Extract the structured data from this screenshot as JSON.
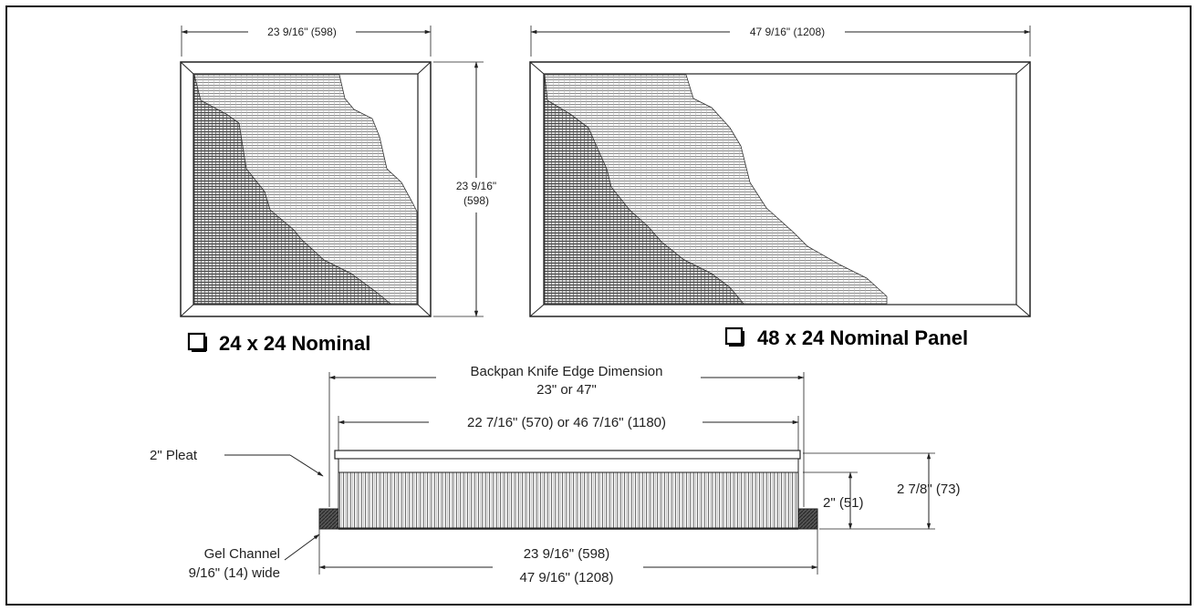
{
  "panel_24": {
    "width_label": "23 9/16\" (598)",
    "height_label_line1": "23 9/16\"",
    "height_label_line2": "(598)",
    "title": "24 x 24 Nominal"
  },
  "panel_48": {
    "width_label": "47 9/16\" (1208)",
    "title": "48 x 24 Nominal Panel"
  },
  "section": {
    "knife_edge_line1": "Backpan Knife Edge Dimension",
    "knife_edge_line2": "23\" or 47\"",
    "inner_width": "22 7/16\" (570) or 46 7/16\" (1180)",
    "pleat_label": "2\" Pleat",
    "pleat_height": "2\" (51)",
    "total_height": "2 7/8\" (73)",
    "gel_line1": "Gel Channel",
    "gel_line2": "9/16\" (14) wide",
    "outer_width_line1": "23 9/16\" (598)",
    "outer_width_line2": "47 9/16\" (1208)"
  },
  "colors": {
    "line": "#222222",
    "hatch_dark": "#4a4a4a",
    "hatch_light": "#9a9a9a"
  }
}
